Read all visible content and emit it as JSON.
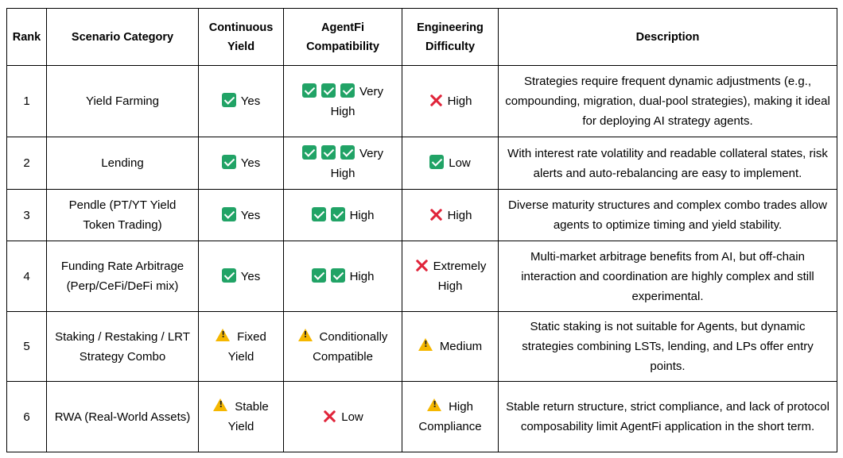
{
  "headers": {
    "rank": "Rank",
    "category": "Scenario Category",
    "yield": "Continuous Yield",
    "compat": "AgentFi Compatibility",
    "difficulty": "Engineering Difficulty",
    "description": "Description"
  },
  "rows": [
    {
      "rank": "1",
      "category": "Yield Farming",
      "yield": {
        "icon": "check-icon",
        "text": "Yes"
      },
      "compat": {
        "icon": "check-icon",
        "count": 3,
        "text": "Very High"
      },
      "difficulty": {
        "icon": "cross-icon",
        "text": "High"
      },
      "description": "Strategies require frequent dynamic adjustments (e.g., compounding, migration, dual-pool strategies), making it ideal for deploying AI strategy agents."
    },
    {
      "rank": "2",
      "category": "Lending",
      "yield": {
        "icon": "check-icon",
        "text": "Yes"
      },
      "compat": {
        "icon": "check-icon",
        "count": 3,
        "text": "Very High"
      },
      "difficulty": {
        "icon": "check-icon",
        "text": "Low"
      },
      "description": "With interest rate volatility and readable collateral states, risk alerts and auto-rebalancing are easy to implement."
    },
    {
      "rank": "3",
      "category": "Pendle (PT/YT Yield Token Trading)",
      "yield": {
        "icon": "check-icon",
        "text": "Yes"
      },
      "compat": {
        "icon": "check-icon",
        "count": 2,
        "text": "High"
      },
      "difficulty": {
        "icon": "cross-icon",
        "text": "High"
      },
      "description": "Diverse maturity structures and complex combo trades allow agents to optimize timing and yield stability."
    },
    {
      "rank": "4",
      "category": "Funding Rate Arbitrage (Perp/CeFi/DeFi mix)",
      "yield": {
        "icon": "check-icon",
        "text": "Yes"
      },
      "compat": {
        "icon": "check-icon",
        "count": 2,
        "text": "High"
      },
      "difficulty": {
        "icon": "cross-icon",
        "text": "Extremely High"
      },
      "description": "Multi-market arbitrage benefits from AI, but off-chain interaction and coordination are highly complex and still experimental."
    },
    {
      "rank": "5",
      "category": "Staking / Restaking / LRT Strategy Combo",
      "yield": {
        "icon": "warning-icon",
        "text": "Fixed Yield"
      },
      "compat": {
        "icon": "warning-icon",
        "count": 1,
        "text": "Conditionally Compatible"
      },
      "difficulty": {
        "icon": "warning-icon",
        "text": "Medium"
      },
      "description": "Static staking is not suitable for Agents, but dynamic strategies combining LSTs, lending, and LPs offer entry points."
    },
    {
      "rank": "6",
      "category": "RWA (Real-World Assets)",
      "yield": {
        "icon": "warning-icon",
        "text": "Stable Yield"
      },
      "compat": {
        "icon": "cross-icon",
        "count": 1,
        "text": "Low"
      },
      "difficulty": {
        "icon": "warning-icon",
        "text": "High Compliance"
      },
      "description": "Stable return structure, strict compliance, and lack of protocol composability limit AgentFi application in the short term."
    }
  ]
}
